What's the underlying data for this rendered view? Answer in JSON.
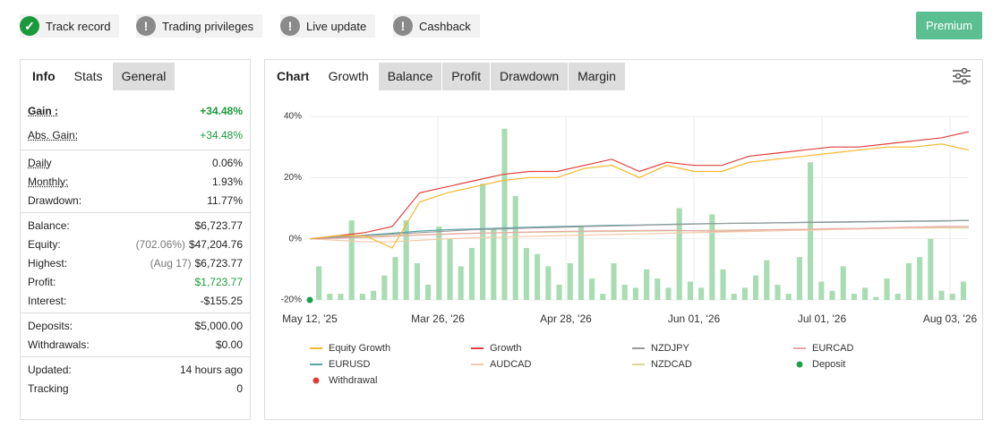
{
  "badges": [
    {
      "label": "Track record",
      "icon": "check"
    },
    {
      "label": "Trading privileges",
      "icon": "alert"
    },
    {
      "label": "Live update",
      "icon": "alert"
    },
    {
      "label": "Cashback",
      "icon": "alert"
    }
  ],
  "premium_button": "Premium",
  "stats_panel": {
    "tabs": [
      "Info",
      "Stats",
      "General"
    ],
    "selected": [
      0,
      1
    ],
    "sections": [
      {
        "rows": [
          {
            "label": "Gain :",
            "value": "+34.48%",
            "underlined": true,
            "color": "#1a9a3c",
            "bold": true
          },
          {
            "label": "Abs. Gain:",
            "value": "+34.48%",
            "underlined": true,
            "color": "#1a9a3c"
          }
        ]
      },
      {
        "rows": [
          {
            "label": "Daily",
            "value": "0.06%",
            "underlined": true
          },
          {
            "label": "Monthly:",
            "value": "1.93%",
            "underlined": true
          },
          {
            "label": "Drawdown:",
            "value": "11.77%"
          }
        ]
      },
      {
        "rows": [
          {
            "label": "Balance:",
            "value": "$6,723.77"
          },
          {
            "label": "Equity:",
            "note": "(702.06%)",
            "value": "$47,204.76"
          },
          {
            "label": "Highest:",
            "note": "(Aug 17)",
            "value": "$6,723.77"
          },
          {
            "label": "Profit:",
            "value": "$1,723.77",
            "color": "#1a9a3c"
          },
          {
            "label": "Interest:",
            "value": "-$155.25"
          }
        ]
      },
      {
        "rows": [
          {
            "label": "Deposits:",
            "value": "$5,000.00"
          },
          {
            "label": "Withdrawals:",
            "value": "$0.00"
          }
        ]
      },
      {
        "rows": [
          {
            "label": "Updated:",
            "value": "14 hours ago"
          },
          {
            "label": "Tracking",
            "value": "0"
          }
        ]
      }
    ]
  },
  "chart_panel": {
    "tabs": [
      "Chart",
      "Growth",
      "Balance",
      "Profit",
      "Drawdown",
      "Margin"
    ],
    "selected": [
      0,
      1
    ]
  },
  "chart_data": {
    "type": "line",
    "xticks": [
      "May 12, '25",
      "Mar 26, '26",
      "Apr 28, '26",
      "Jun 01, '26",
      "Jul 01, '26",
      "Aug 03, '26"
    ],
    "ylim": [
      -20,
      40
    ],
    "yticks": [
      {
        "value": -20,
        "label": "-20%"
      },
      {
        "value": 0,
        "label": "0%"
      },
      {
        "value": 20,
        "label": "20%"
      },
      {
        "value": 40,
        "label": "40%"
      }
    ],
    "grid": true,
    "bars": {
      "color": "#a8dcb2",
      "values": [
        -9,
        -18,
        -18,
        6,
        -18,
        -17,
        -12,
        -6,
        6,
        -8,
        -15,
        4,
        0,
        -9,
        -3,
        18,
        3,
        36,
        14,
        -3,
        -5,
        -9,
        -15,
        -8,
        4,
        -13,
        -18,
        -8,
        -15,
        -16,
        -10,
        -13,
        -16,
        10,
        -14,
        -16,
        8,
        -10,
        -18,
        -16,
        -12,
        -7,
        -15,
        -18,
        -6,
        25,
        -14,
        -17,
        -9,
        -18,
        -16,
        -19,
        -13,
        -18,
        -8,
        -6,
        0,
        -17,
        -18,
        -14
      ]
    },
    "series": [
      {
        "name": "Equity Growth",
        "color": "#f5b82e",
        "values": [
          0,
          1,
          1,
          -3,
          12,
          15,
          17,
          19,
          20,
          20,
          23,
          24,
          20,
          24,
          22,
          22,
          25,
          26,
          27,
          28,
          29,
          30,
          30,
          31,
          29
        ]
      },
      {
        "name": "Growth",
        "color": "#e0403e",
        "values": [
          0,
          1,
          2,
          4,
          15,
          17,
          19,
          21,
          22,
          22,
          24,
          26,
          22,
          25,
          24,
          24,
          27,
          28,
          29,
          30,
          30,
          31,
          32,
          33,
          35
        ]
      },
      {
        "name": "NZDJPY",
        "color": "#9a9a9a",
        "values": [
          0,
          0.5,
          1,
          1.5,
          2,
          2.5,
          3,
          3.2,
          3.5,
          3.7,
          4,
          4.2,
          4.4,
          4.6,
          4.8,
          5,
          5.1,
          5.2,
          5.4,
          5.5,
          5.6,
          5.7,
          5.8,
          5.9,
          6
        ]
      },
      {
        "name": "EURCAD",
        "color": "#e8a6a6",
        "values": [
          0,
          0.2,
          0.4,
          0.8,
          1.2,
          1.5,
          1.8,
          2,
          2.2,
          2.4,
          2.5,
          2.6,
          2.7,
          2.8,
          2.6,
          2.5,
          2.8,
          3,
          3.1,
          3.3,
          3.4,
          3.6,
          3.8,
          4,
          4
        ]
      },
      {
        "name": "EURUSD",
        "color": "#5aa3a8",
        "values": [
          0,
          0.6,
          1.2,
          1.8,
          2.5,
          3,
          3.2,
          3.5,
          3.8,
          4,
          4.2,
          4.4,
          4.5,
          4.7,
          4.9,
          5,
          5.1,
          5.2,
          5.3,
          5.4,
          5.5,
          5.6,
          5.7,
          5.8,
          6
        ]
      },
      {
        "name": "AUDCAD",
        "color": "#f5c9a8",
        "values": [
          0,
          -0.5,
          -1,
          -1,
          -0.5,
          0,
          0.3,
          0.5,
          0.8,
          1,
          1.2,
          1.4,
          1.6,
          1.8,
          2,
          2.2,
          2.4,
          2.6,
          2.8,
          3,
          3.2,
          3.4,
          3.6,
          3.8,
          4
        ]
      },
      {
        "name": "NZDCAD",
        "color": "#d8d89a",
        "values": [
          0,
          0.3,
          0.6,
          1,
          1.3,
          1.6,
          1.8,
          2,
          2.1,
          2.2,
          2.3,
          2.4,
          2.5,
          2.6,
          2.7,
          2.8,
          2.9,
          3,
          3.1,
          3.2,
          3.3,
          3.4,
          3.5,
          3.5,
          3.5
        ]
      },
      {
        "name": "Deposit",
        "color": "#1ea04a",
        "style": "dot",
        "values": [
          -20,
          null,
          null,
          null,
          null,
          null,
          null,
          null,
          null,
          null,
          null,
          null,
          null,
          null,
          null,
          null,
          null,
          null,
          null,
          null,
          null,
          null,
          null,
          null,
          null
        ]
      },
      {
        "name": "Withdrawal",
        "color": "#e53935",
        "style": "dot",
        "values": [
          null,
          null,
          null,
          null,
          null,
          null,
          null,
          null,
          null,
          null,
          null,
          null,
          null,
          null,
          null,
          null,
          null,
          null,
          null,
          null,
          null,
          null,
          null,
          null,
          null
        ]
      }
    ]
  }
}
